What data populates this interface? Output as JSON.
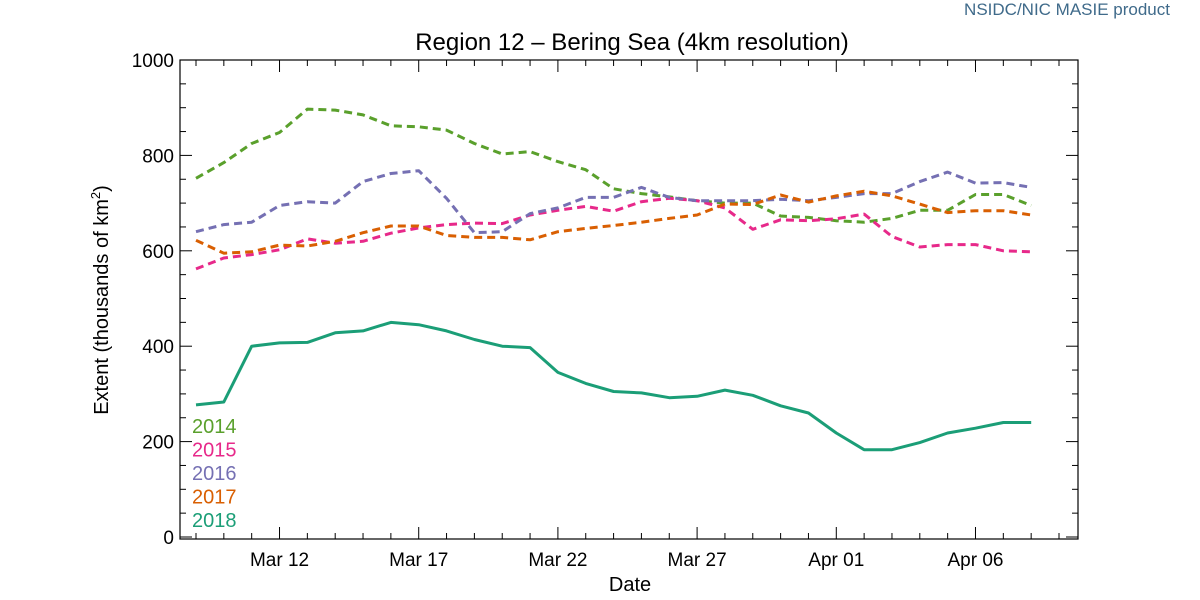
{
  "header": {
    "product": "NSIDC/NIC MASIE product"
  },
  "chart_data": {
    "type": "line",
    "title": "Region 12 – Bering Sea (4km resolution)",
    "xlabel": "Date",
    "ylabel_main": "Extent (thousands of km",
    "ylabel_sup": "2",
    "ylabel_close": ")",
    "ylim": [
      0,
      1000
    ],
    "yticks": [
      0,
      200,
      400,
      600,
      800,
      1000
    ],
    "xlim": [
      "2018-03-09",
      "2018-04-09"
    ],
    "xticks": [
      {
        "date": "2018-03-12",
        "label": "Mar 12"
      },
      {
        "date": "2018-03-17",
        "label": "Mar 17"
      },
      {
        "date": "2018-03-22",
        "label": "Mar 22"
      },
      {
        "date": "2018-03-27",
        "label": "Mar 27"
      },
      {
        "date": "2018-04-01",
        "label": "Apr 01"
      },
      {
        "date": "2018-04-06",
        "label": "Apr 06"
      }
    ],
    "x": [
      "2018-03-09",
      "2018-03-10",
      "2018-03-11",
      "2018-03-12",
      "2018-03-13",
      "2018-03-14",
      "2018-03-15",
      "2018-03-16",
      "2018-03-17",
      "2018-03-18",
      "2018-03-19",
      "2018-03-20",
      "2018-03-21",
      "2018-03-22",
      "2018-03-23",
      "2018-03-24",
      "2018-03-25",
      "2018-03-26",
      "2018-03-27",
      "2018-03-28",
      "2018-03-29",
      "2018-03-30",
      "2018-03-31",
      "2018-04-01",
      "2018-04-02",
      "2018-04-03",
      "2018-04-04",
      "2018-04-05",
      "2018-04-06",
      "2018-04-07",
      "2018-04-08"
    ],
    "series": [
      {
        "name": "2014",
        "color": "#5aa02c",
        "dashed": true,
        "values": [
          752,
          785,
          825,
          848,
          897,
          895,
          885,
          862,
          860,
          853,
          825,
          803,
          808,
          787,
          770,
          730,
          720,
          713,
          705,
          700,
          700,
          673,
          670,
          663,
          660,
          668,
          685,
          685,
          718,
          718,
          695
        ]
      },
      {
        "name": "2015",
        "color": "#e7298a",
        "dashed": true,
        "values": [
          562,
          585,
          592,
          602,
          625,
          616,
          620,
          637,
          648,
          655,
          658,
          657,
          675,
          685,
          693,
          683,
          703,
          710,
          705,
          690,
          645,
          665,
          663,
          667,
          677,
          630,
          608,
          613,
          613,
          600,
          598
        ]
      },
      {
        "name": "2016",
        "color": "#7570b3",
        "dashed": true,
        "values": [
          640,
          655,
          660,
          695,
          703,
          700,
          745,
          762,
          768,
          710,
          638,
          640,
          678,
          690,
          712,
          712,
          733,
          712,
          705,
          705,
          705,
          708,
          705,
          712,
          720,
          720,
          745,
          765,
          742,
          743,
          733
        ]
      },
      {
        "name": "2017",
        "color": "#d95f02",
        "dashed": true,
        "values": [
          622,
          595,
          598,
          612,
          610,
          620,
          638,
          652,
          652,
          632,
          628,
          628,
          623,
          640,
          647,
          653,
          660,
          668,
          675,
          698,
          697,
          717,
          702,
          715,
          725,
          715,
          698,
          680,
          684,
          684,
          675
        ]
      },
      {
        "name": "2018",
        "color": "#1b9e77",
        "dashed": false,
        "values": [
          277,
          283,
          400,
          407,
          408,
          428,
          432,
          450,
          445,
          432,
          414,
          400,
          397,
          345,
          322,
          305,
          302,
          292,
          295,
          308,
          297,
          275,
          260,
          218,
          183,
          183,
          198,
          218,
          228,
          240,
          240
        ]
      }
    ]
  }
}
